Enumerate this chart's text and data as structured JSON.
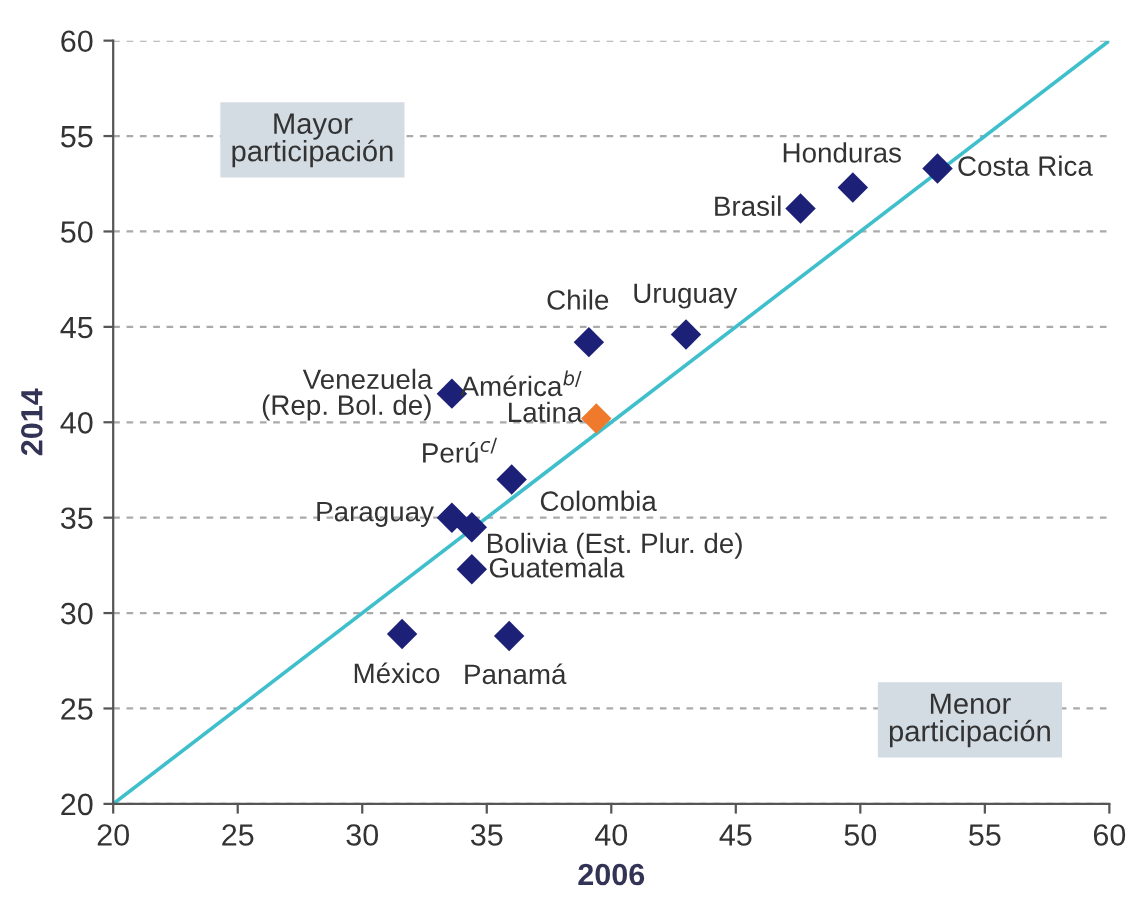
{
  "chart_data": {
    "type": "scatter",
    "xlabel": "2006",
    "ylabel": "2014",
    "xlim": [
      20,
      60
    ],
    "xticks": [
      20,
      25,
      30,
      35,
      40,
      45,
      50,
      55,
      60
    ],
    "ylim": [
      20,
      60
    ],
    "yticks": [
      20,
      25,
      30,
      35,
      40,
      45,
      50,
      55,
      60
    ],
    "grid": "y",
    "marker": "diamond",
    "series": [
      {
        "type": "line",
        "color": "#3fbfcc",
        "x": [
          20,
          60
        ],
        "values": [
          20,
          60
        ],
        "line_style": "solid",
        "marker": "none"
      },
      {
        "x": [
          53.1,
          49.7,
          47.6,
          43.0,
          39.1,
          33.6,
          39.4,
          36.0,
          33.6,
          34.4,
          34.4,
          31.6,
          35.9
        ],
        "values": [
          53.3,
          52.3,
          51.2,
          44.6,
          44.2,
          41.5,
          40.2,
          37.0,
          35.0,
          34.5,
          32.3,
          28.9,
          28.8
        ],
        "colors": [
          "#1c2177",
          "#1c2177",
          "#1c2177",
          "#1c2177",
          "#1c2177",
          "#1c2177",
          "#f07a2c",
          "#1c2177",
          "#1c2177",
          "#1c2177",
          "#1c2177",
          "#1c2177",
          "#1c2177"
        ]
      }
    ],
    "annotations": [
      {
        "text": "Costa Rica",
        "x": 53.1,
        "y": 53.3
      },
      {
        "text": "Honduras",
        "x": 49.7,
        "y": 52.3
      },
      {
        "text": "Brasil",
        "x": 47.65,
        "y": 51.2
      },
      {
        "text": "Uruguay",
        "x": 42.95,
        "y": 44.65
      },
      {
        "text": "Chile",
        "x": 39.1,
        "y": 44.15
      },
      {
        "text": "Venezuela\n(Rep. Bol. de)",
        "x": 33.6,
        "y": 41.45
      },
      {
        "text": "América$^{b/}$\nLatina",
        "x": 39.4,
        "y": 40.2
      },
      {
        "text": "Perú$^{c/}$",
        "x": 36.0,
        "y": 37.0
      },
      {
        "text": "Colombia",
        "x": 36.0,
        "y": 37.0
      },
      {
        "text": "Paraguay",
        "x": 33.55,
        "y": 35.05
      },
      {
        "text": "Bolivia (Est. Plur. de)",
        "x": 34.4,
        "y": 34.5
      },
      {
        "text": "Guatemala",
        "x": 34.4,
        "y": 32.25
      },
      {
        "text": "México",
        "x": 31.6,
        "y": 28.85
      },
      {
        "text": "Panamá",
        "x": 35.9,
        "y": 28.8
      },
      "Mayor\nparticipación",
      "Menor\nparticipación"
    ]
  }
}
